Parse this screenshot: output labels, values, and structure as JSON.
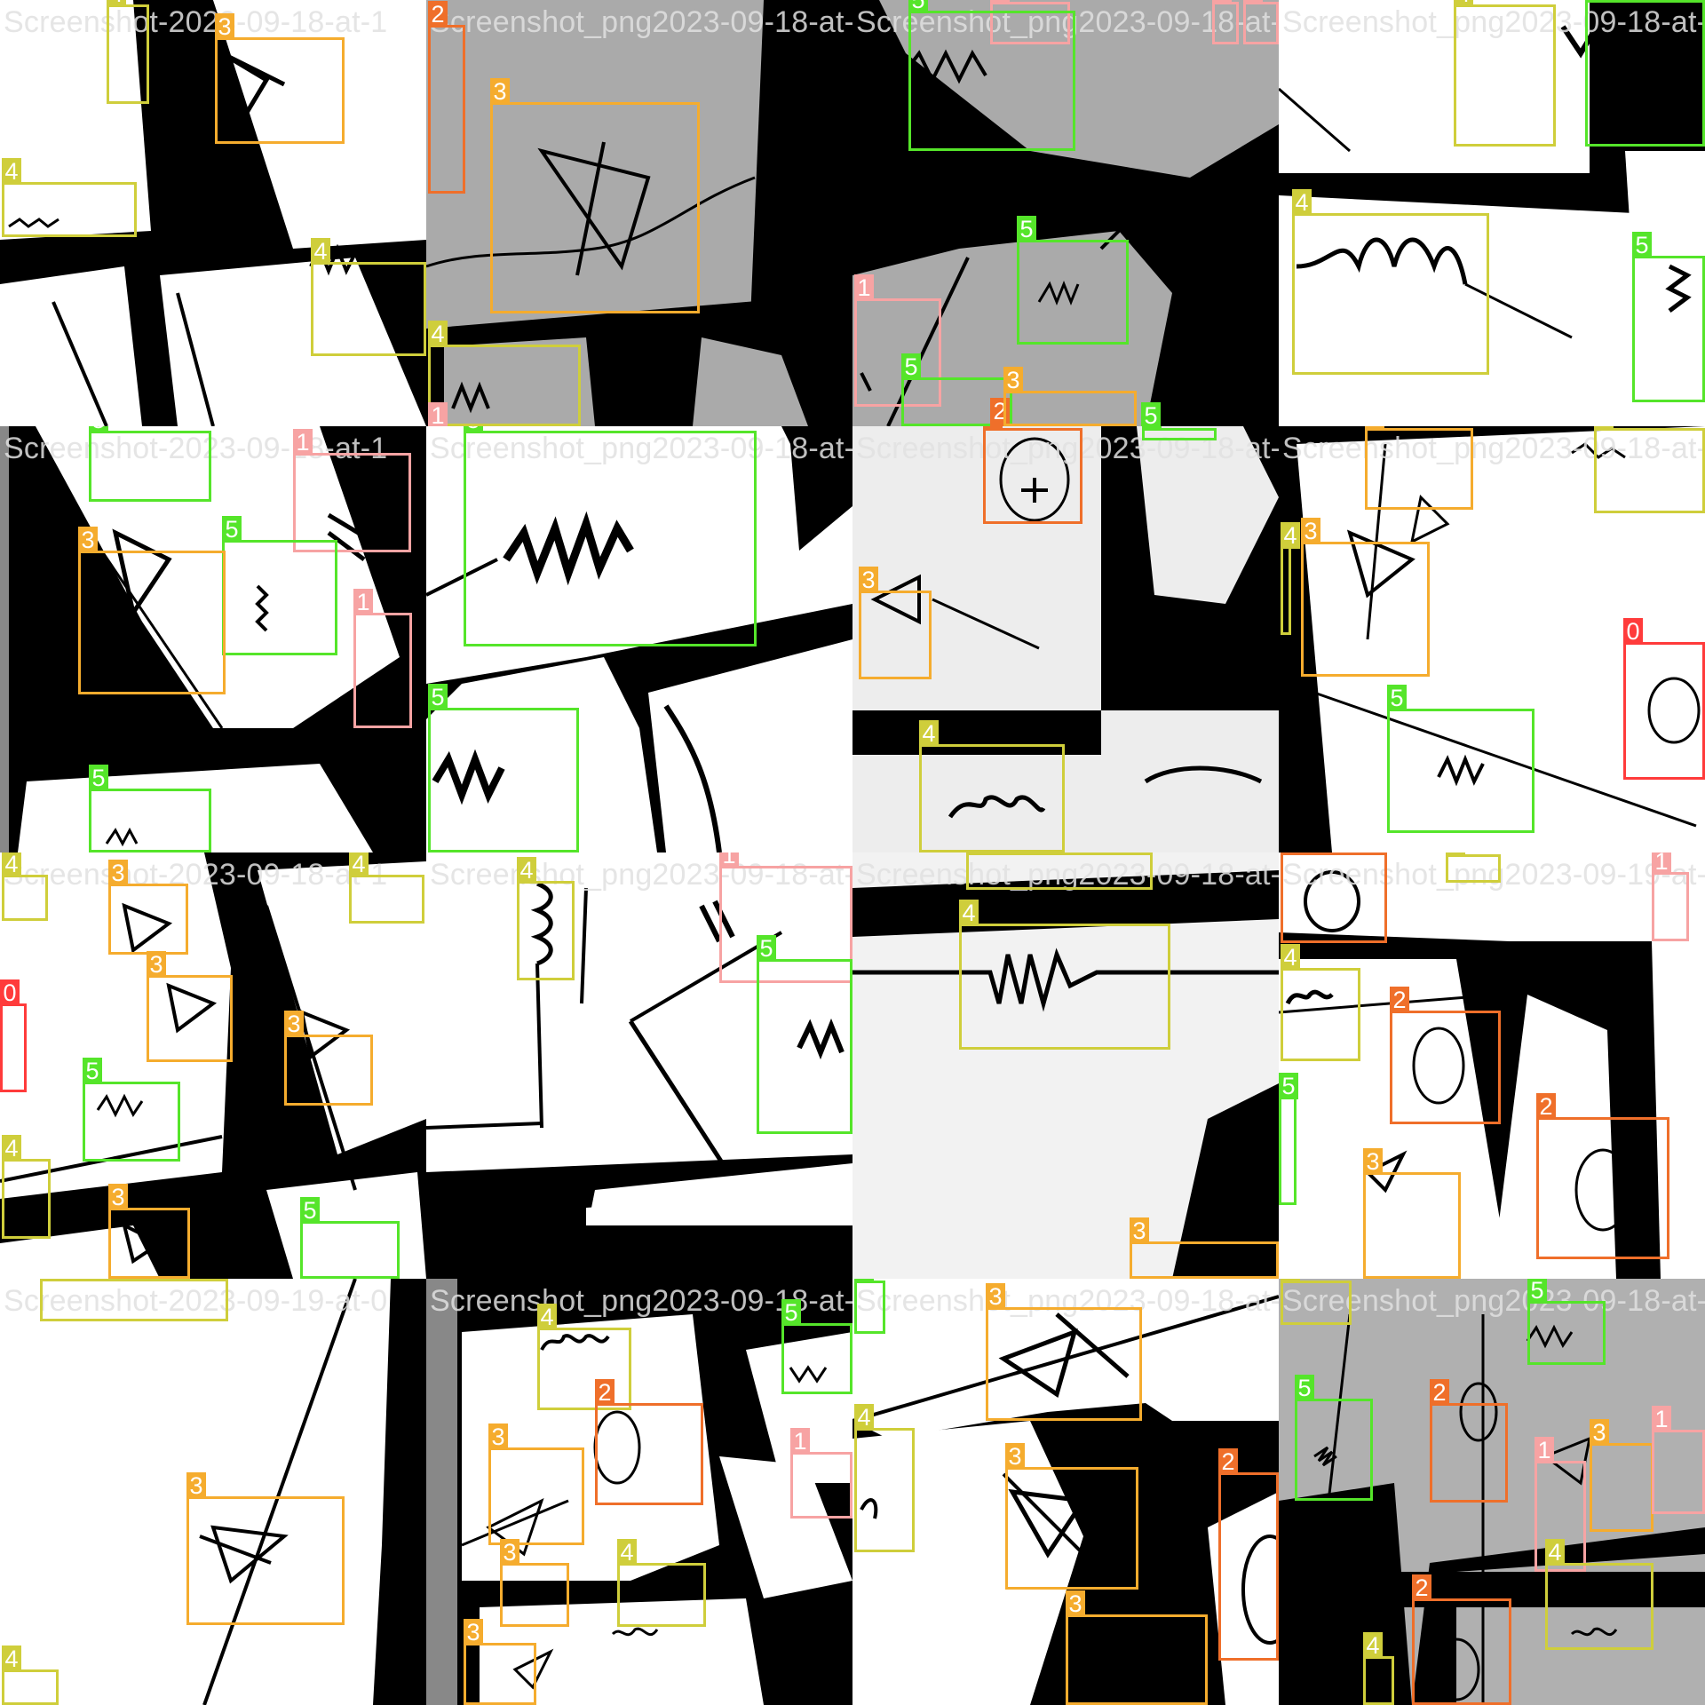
{
  "title_prefix": "Screenshot-2023-09-18-at-1",
  "classes": [
    {
      "id": "0",
      "label": "0",
      "color": "#ff3b3b"
    },
    {
      "id": "1",
      "label": "1",
      "color": "#f7a3a3"
    },
    {
      "id": "2",
      "label": "2",
      "color": "#ef6f2a"
    },
    {
      "id": "3",
      "label": "3",
      "color": "#f5ac2e"
    },
    {
      "id": "4",
      "label": "4",
      "color": "#cfce3b"
    },
    {
      "id": "5",
      "label": "5",
      "color": "#55e52a"
    }
  ],
  "tiles": [
    {
      "title": "Screenshot-2023-09-18-at-1",
      "labels": [
        "4",
        "3",
        "4",
        "4"
      ]
    },
    {
      "title": "Screenshot_png2023-09-18-at-1",
      "labels": [
        "2",
        "3",
        "4",
        "1"
      ]
    },
    {
      "title": "Screenshot_png2023-09-18-at-1",
      "labels": [
        "1",
        "5",
        "1",
        "1",
        "5",
        "1",
        "5",
        "2",
        "3",
        "5"
      ]
    },
    {
      "title": "Screenshot_png2023-09-18-at-1",
      "labels": [
        "4",
        "5",
        "4",
        "5"
      ]
    },
    {
      "title": "Screenshot-2023-09-18-at-1",
      "labels": [
        "5",
        "1",
        "5",
        "3",
        "1",
        "5"
      ]
    },
    {
      "title": "Screenshot_png2023-09-18-at-1",
      "labels": [
        "5",
        "5"
      ]
    },
    {
      "title": "Screenshot_png2023-09-18-at-1",
      "labels": [
        "2",
        "3",
        "4",
        "5"
      ]
    },
    {
      "title": "Screenshot_png2023-09-18-at-1",
      "labels": [
        "3",
        "4",
        "3",
        "0",
        "5",
        "4"
      ]
    },
    {
      "title": "Screenshot-2023-09-18-at-1",
      "labels": [
        "4",
        "3",
        "4",
        "3",
        "0",
        "5",
        "3",
        "4",
        "3",
        "5"
      ]
    },
    {
      "title": "Screenshot_png2023-09-18-at-1",
      "labels": [
        "4",
        "1",
        "5"
      ]
    },
    {
      "title": "Screenshot_png2023-09-18-at-1",
      "labels": [
        "4",
        "4",
        "3"
      ]
    },
    {
      "title": "Screenshot_png2023-09-19-at-0",
      "labels": [
        "2",
        "4",
        "1",
        "4",
        "2",
        "5",
        "2",
        "3"
      ]
    },
    {
      "title": "Screenshot-2023-09-19-at-0",
      "labels": [
        "4",
        "3",
        "4"
      ]
    },
    {
      "title": "Screenshot_png2023-09-18-at-1",
      "labels": [
        "4",
        "5",
        "2",
        "3",
        "1",
        "3",
        "4",
        "3"
      ]
    },
    {
      "title": "Screenshot_png2023-09-18-at-1",
      "labels": [
        "5",
        "3",
        "4",
        "3",
        "2",
        "3"
      ]
    },
    {
      "title": "Screenshot_png2023-09-18-at-1",
      "labels": [
        "4",
        "5",
        "5",
        "2",
        "3",
        "1",
        "1",
        "4",
        "2",
        "4"
      ]
    }
  ]
}
